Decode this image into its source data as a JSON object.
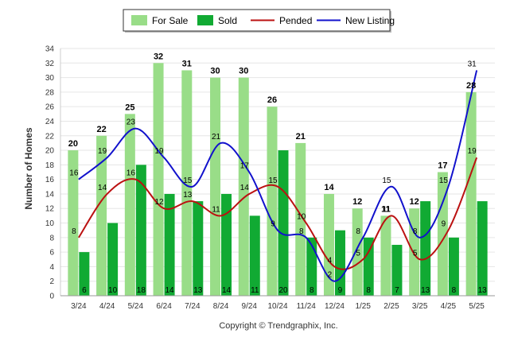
{
  "chart_data": {
    "type": "bar",
    "categories": [
      "3/24",
      "4/24",
      "5/24",
      "6/24",
      "7/24",
      "8/24",
      "9/24",
      "10/24",
      "11/24",
      "12/24",
      "1/25",
      "2/25",
      "3/25",
      "4/25",
      "5/25"
    ],
    "series": [
      {
        "name": "For Sale",
        "kind": "bar",
        "color": "#99dd88",
        "values": [
          20,
          22,
          25,
          32,
          31,
          30,
          30,
          26,
          21,
          14,
          12,
          11,
          12,
          17,
          28
        ]
      },
      {
        "name": "Sold",
        "kind": "bar",
        "color": "#11aa33",
        "values": [
          6,
          10,
          18,
          14,
          13,
          14,
          11,
          20,
          8,
          9,
          8,
          7,
          13,
          8,
          13
        ]
      },
      {
        "name": "Pended",
        "kind": "line",
        "color": "#bb1111",
        "values": [
          8,
          14,
          16,
          12,
          13,
          11,
          14,
          15,
          10,
          4,
          5,
          11,
          5,
          9,
          19
        ]
      },
      {
        "name": "New Listing",
        "kind": "line",
        "color": "#1111cc",
        "values": [
          16,
          19,
          23,
          19,
          15,
          21,
          17,
          9,
          8,
          2,
          8,
          15,
          8,
          15,
          31
        ]
      }
    ],
    "ylabel": "Number of Homes",
    "xlabel": "",
    "ylim": [
      0,
      34
    ],
    "yticks": [
      0,
      2,
      4,
      6,
      8,
      10,
      12,
      14,
      16,
      18,
      20,
      22,
      24,
      26,
      28,
      30,
      32,
      34
    ],
    "grid": true,
    "legend_position": "top-center",
    "footer": "Copyright © Trendgraphix, Inc."
  }
}
